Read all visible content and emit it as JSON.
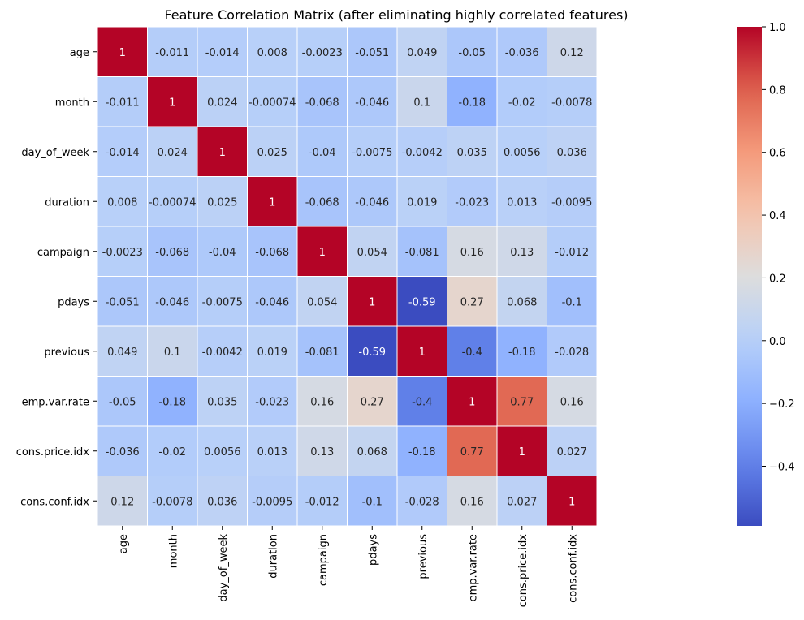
{
  "chart_data": {
    "type": "heatmap",
    "title": "Feature Correlation Matrix (after eliminating highly correlated features)",
    "rows": [
      "age",
      "month",
      "day_of_week",
      "duration",
      "campaign",
      "pdays",
      "previous",
      "emp.var.rate",
      "cons.price.idx",
      "cons.conf.idx"
    ],
    "columns": [
      "age",
      "month",
      "day_of_week",
      "duration",
      "campaign",
      "pdays",
      "previous",
      "emp.var.rate",
      "cons.price.idx",
      "cons.conf.idx"
    ],
    "values": [
      [
        "1",
        "-0.011",
        "-0.014",
        "0.008",
        "-0.0023",
        "-0.051",
        "0.049",
        "-0.05",
        "-0.036",
        "0.12"
      ],
      [
        "-0.011",
        "1",
        "0.024",
        "-0.00074",
        "-0.068",
        "-0.046",
        "0.1",
        "-0.18",
        "-0.02",
        "-0.0078"
      ],
      [
        "-0.014",
        "0.024",
        "1",
        "0.025",
        "-0.04",
        "-0.0075",
        "-0.0042",
        "0.035",
        "0.0056",
        "0.036"
      ],
      [
        "0.008",
        "-0.00074",
        "0.025",
        "1",
        "-0.068",
        "-0.046",
        "0.019",
        "-0.023",
        "0.013",
        "-0.0095"
      ],
      [
        "-0.0023",
        "-0.068",
        "-0.04",
        "-0.068",
        "1",
        "0.054",
        "-0.081",
        "0.16",
        "0.13",
        "-0.012"
      ],
      [
        "-0.051",
        "-0.046",
        "-0.0075",
        "-0.046",
        "0.054",
        "1",
        "-0.59",
        "0.27",
        "0.068",
        "-0.1"
      ],
      [
        "0.049",
        "0.1",
        "-0.0042",
        "0.019",
        "-0.081",
        "-0.59",
        "1",
        "-0.4",
        "-0.18",
        "-0.028"
      ],
      [
        "-0.05",
        "-0.18",
        "0.035",
        "-0.023",
        "0.16",
        "0.27",
        "-0.4",
        "1",
        "0.77",
        "0.16"
      ],
      [
        "-0.036",
        "-0.02",
        "0.0056",
        "0.013",
        "0.13",
        "0.068",
        "-0.18",
        "0.77",
        "1",
        "0.027"
      ],
      [
        "0.12",
        "-0.0078",
        "0.036",
        "-0.0095",
        "-0.012",
        "-0.1",
        "-0.028",
        "0.16",
        "0.027",
        "1"
      ]
    ],
    "colormap": "coolwarm",
    "vmin": -0.59,
    "vmax": 1.0,
    "colorbar_ticks": [
      {
        "value": 1.0,
        "label": "1.0"
      },
      {
        "value": 0.8,
        "label": "0.8"
      },
      {
        "value": 0.6,
        "label": "0.6"
      },
      {
        "value": 0.4,
        "label": "0.4"
      },
      {
        "value": 0.2,
        "label": "0.2"
      },
      {
        "value": 0.0,
        "label": "0.0"
      },
      {
        "value": -0.2,
        "label": "−0.2"
      },
      {
        "value": -0.4,
        "label": "−0.4"
      }
    ],
    "grid": true,
    "colors": {
      "cell_border": "#ffffff",
      "annotation_light": "#ffffff",
      "annotation_dark": "#262626"
    }
  }
}
